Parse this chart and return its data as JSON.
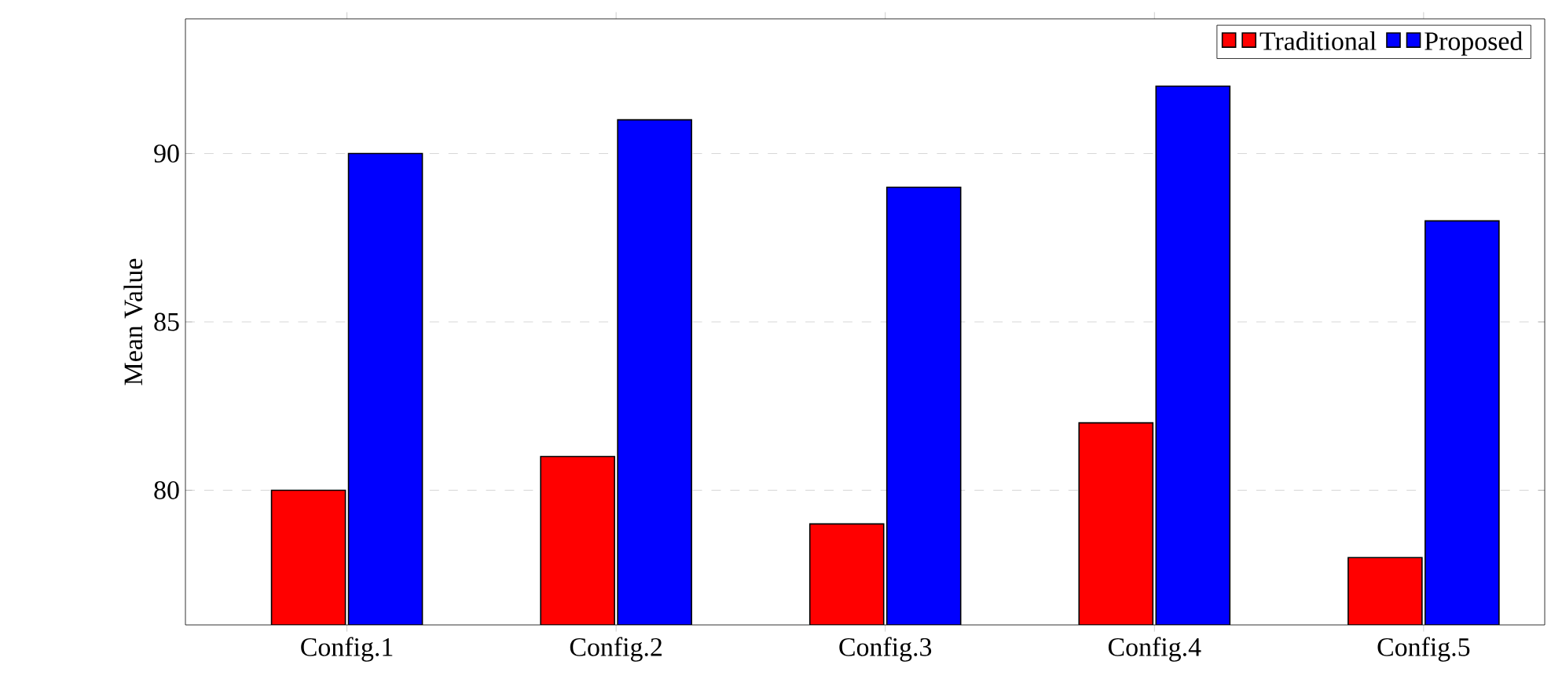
{
  "chart_data": {
    "type": "bar",
    "ylabel": "Mean Value",
    "categories": [
      "Config.1",
      "Config.2",
      "Config.3",
      "Config.4",
      "Config.5"
    ],
    "series": [
      {
        "name": "Traditional",
        "color": "#ff0000",
        "values": [
          80,
          81,
          79,
          82,
          78
        ]
      },
      {
        "name": "Proposed",
        "color": "#0000ff",
        "values": [
          90,
          91,
          89,
          92,
          88
        ]
      }
    ],
    "ylim": [
      76,
      94
    ],
    "yticks": [
      80,
      85,
      90
    ],
    "grid": "y",
    "legend": "top right"
  }
}
